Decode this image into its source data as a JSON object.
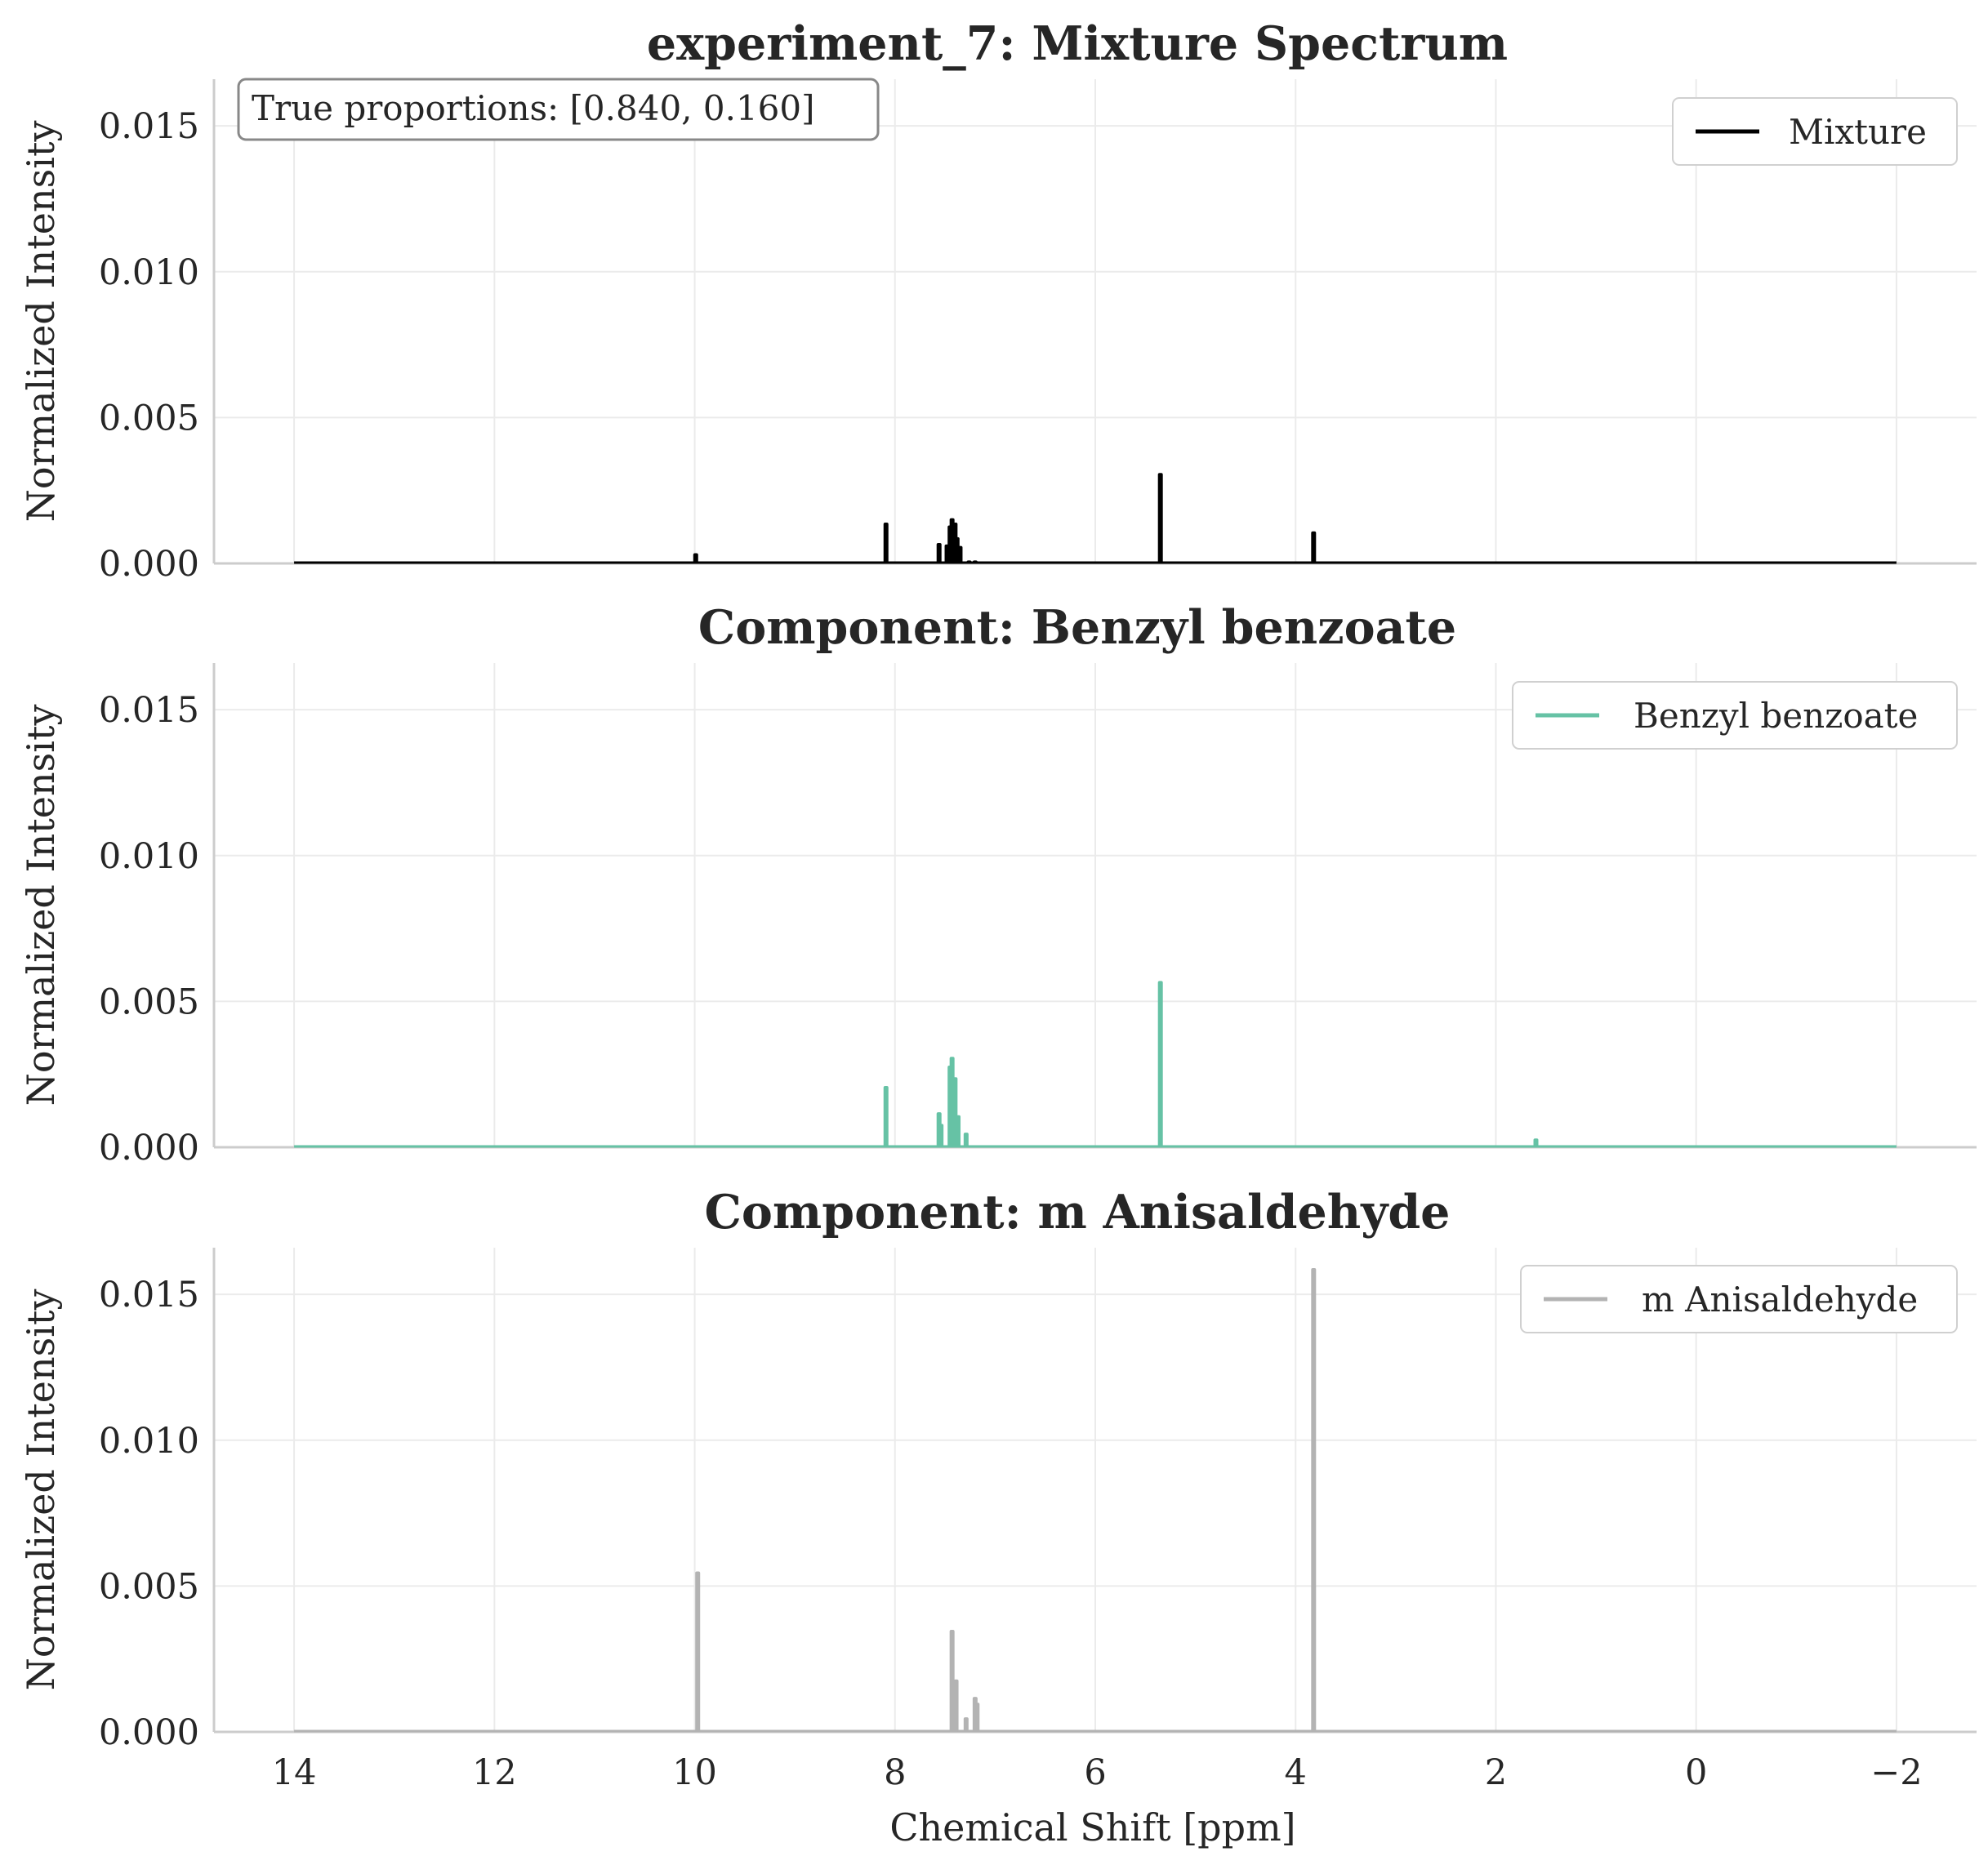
{
  "chart_data": [
    {
      "type": "line",
      "title": "experiment_7: Mixture Spectrum",
      "xlabel": "",
      "ylabel": "Normalized Intensity",
      "xlim": [
        14.8,
        -2.8
      ],
      "x_reversed": true,
      "ylim": [
        0,
        0.0166
      ],
      "xticks": [
        14,
        12,
        10,
        8,
        6,
        4,
        2,
        0,
        -2
      ],
      "yticks": [
        0.0,
        0.005,
        0.01,
        0.015
      ],
      "yticklabels": [
        "0.000",
        "0.005",
        "0.010",
        "0.015"
      ],
      "grid": true,
      "legend_position": "top-right",
      "annotation": "True proportions: [0.840, 0.160]",
      "series": [
        {
          "name": "Mixture",
          "color": "#000000",
          "x_range": [
            14.0,
            -2.0
          ],
          "peaks": [
            {
              "x": 9.99,
              "y": 0.00035
            },
            {
              "x": 8.09,
              "y": 0.0014
            },
            {
              "x": 7.56,
              "y": 0.0007
            },
            {
              "x": 7.48,
              "y": 0.00065
            },
            {
              "x": 7.45,
              "y": 0.0013
            },
            {
              "x": 7.43,
              "y": 0.00155
            },
            {
              "x": 7.4,
              "y": 0.0014
            },
            {
              "x": 7.38,
              "y": 0.0009
            },
            {
              "x": 7.35,
              "y": 0.0006
            },
            {
              "x": 7.26,
              "y": 0.0001
            },
            {
              "x": 7.2,
              "y": 0.0001
            },
            {
              "x": 5.35,
              "y": 0.0031
            },
            {
              "x": 3.82,
              "y": 0.0011
            }
          ]
        }
      ]
    },
    {
      "type": "line",
      "title": "Component: Benzyl benzoate",
      "xlabel": "",
      "ylabel": "Normalized Intensity",
      "xlim": [
        14.8,
        -2.8
      ],
      "x_reversed": true,
      "ylim": [
        0,
        0.0166
      ],
      "xticks": [
        14,
        12,
        10,
        8,
        6,
        4,
        2,
        0,
        -2
      ],
      "yticks": [
        0.0,
        0.005,
        0.01,
        0.015
      ],
      "yticklabels": [
        "0.000",
        "0.005",
        "0.010",
        "0.015"
      ],
      "grid": true,
      "legend_position": "top-right",
      "series": [
        {
          "name": "Benzyl benzoate",
          "color": "#66c2a5",
          "x_range": [
            14.0,
            -2.0
          ],
          "peaks": [
            {
              "x": 8.09,
              "y": 0.0021
            },
            {
              "x": 7.56,
              "y": 0.0012
            },
            {
              "x": 7.54,
              "y": 0.0008
            },
            {
              "x": 7.45,
              "y": 0.0028
            },
            {
              "x": 7.43,
              "y": 0.0031
            },
            {
              "x": 7.4,
              "y": 0.0024
            },
            {
              "x": 7.37,
              "y": 0.0011
            },
            {
              "x": 7.29,
              "y": 0.0005
            },
            {
              "x": 5.35,
              "y": 0.0057
            },
            {
              "x": 1.6,
              "y": 0.0003
            }
          ]
        }
      ]
    },
    {
      "type": "line",
      "title": "Component: m Anisaldehyde",
      "xlabel": "Chemical Shift [ppm]",
      "ylabel": "Normalized Intensity",
      "xlim": [
        14.8,
        -2.8
      ],
      "x_reversed": true,
      "ylim": [
        0,
        0.0166
      ],
      "xticks": [
        14,
        12,
        10,
        8,
        6,
        4,
        2,
        0,
        -2
      ],
      "xticklabels": [
        "14",
        "12",
        "10",
        "8",
        "6",
        "4",
        "2",
        "0",
        "−2"
      ],
      "yticks": [
        0.0,
        0.005,
        0.01,
        0.015
      ],
      "yticklabels": [
        "0.000",
        "0.005",
        "0.010",
        "0.015"
      ],
      "grid": true,
      "legend_position": "top-right",
      "series": [
        {
          "name": "m Anisaldehyde",
          "color": "#b3b3b3",
          "x_range": [
            14.0,
            -2.0
          ],
          "peaks": [
            {
              "x": 9.97,
              "y": 0.0055
            },
            {
              "x": 7.43,
              "y": 0.0035
            },
            {
              "x": 7.39,
              "y": 0.0018
            },
            {
              "x": 7.29,
              "y": 0.0005
            },
            {
              "x": 7.2,
              "y": 0.0012
            },
            {
              "x": 7.18,
              "y": 0.001
            },
            {
              "x": 3.82,
              "y": 0.0159
            }
          ]
        }
      ]
    }
  ]
}
